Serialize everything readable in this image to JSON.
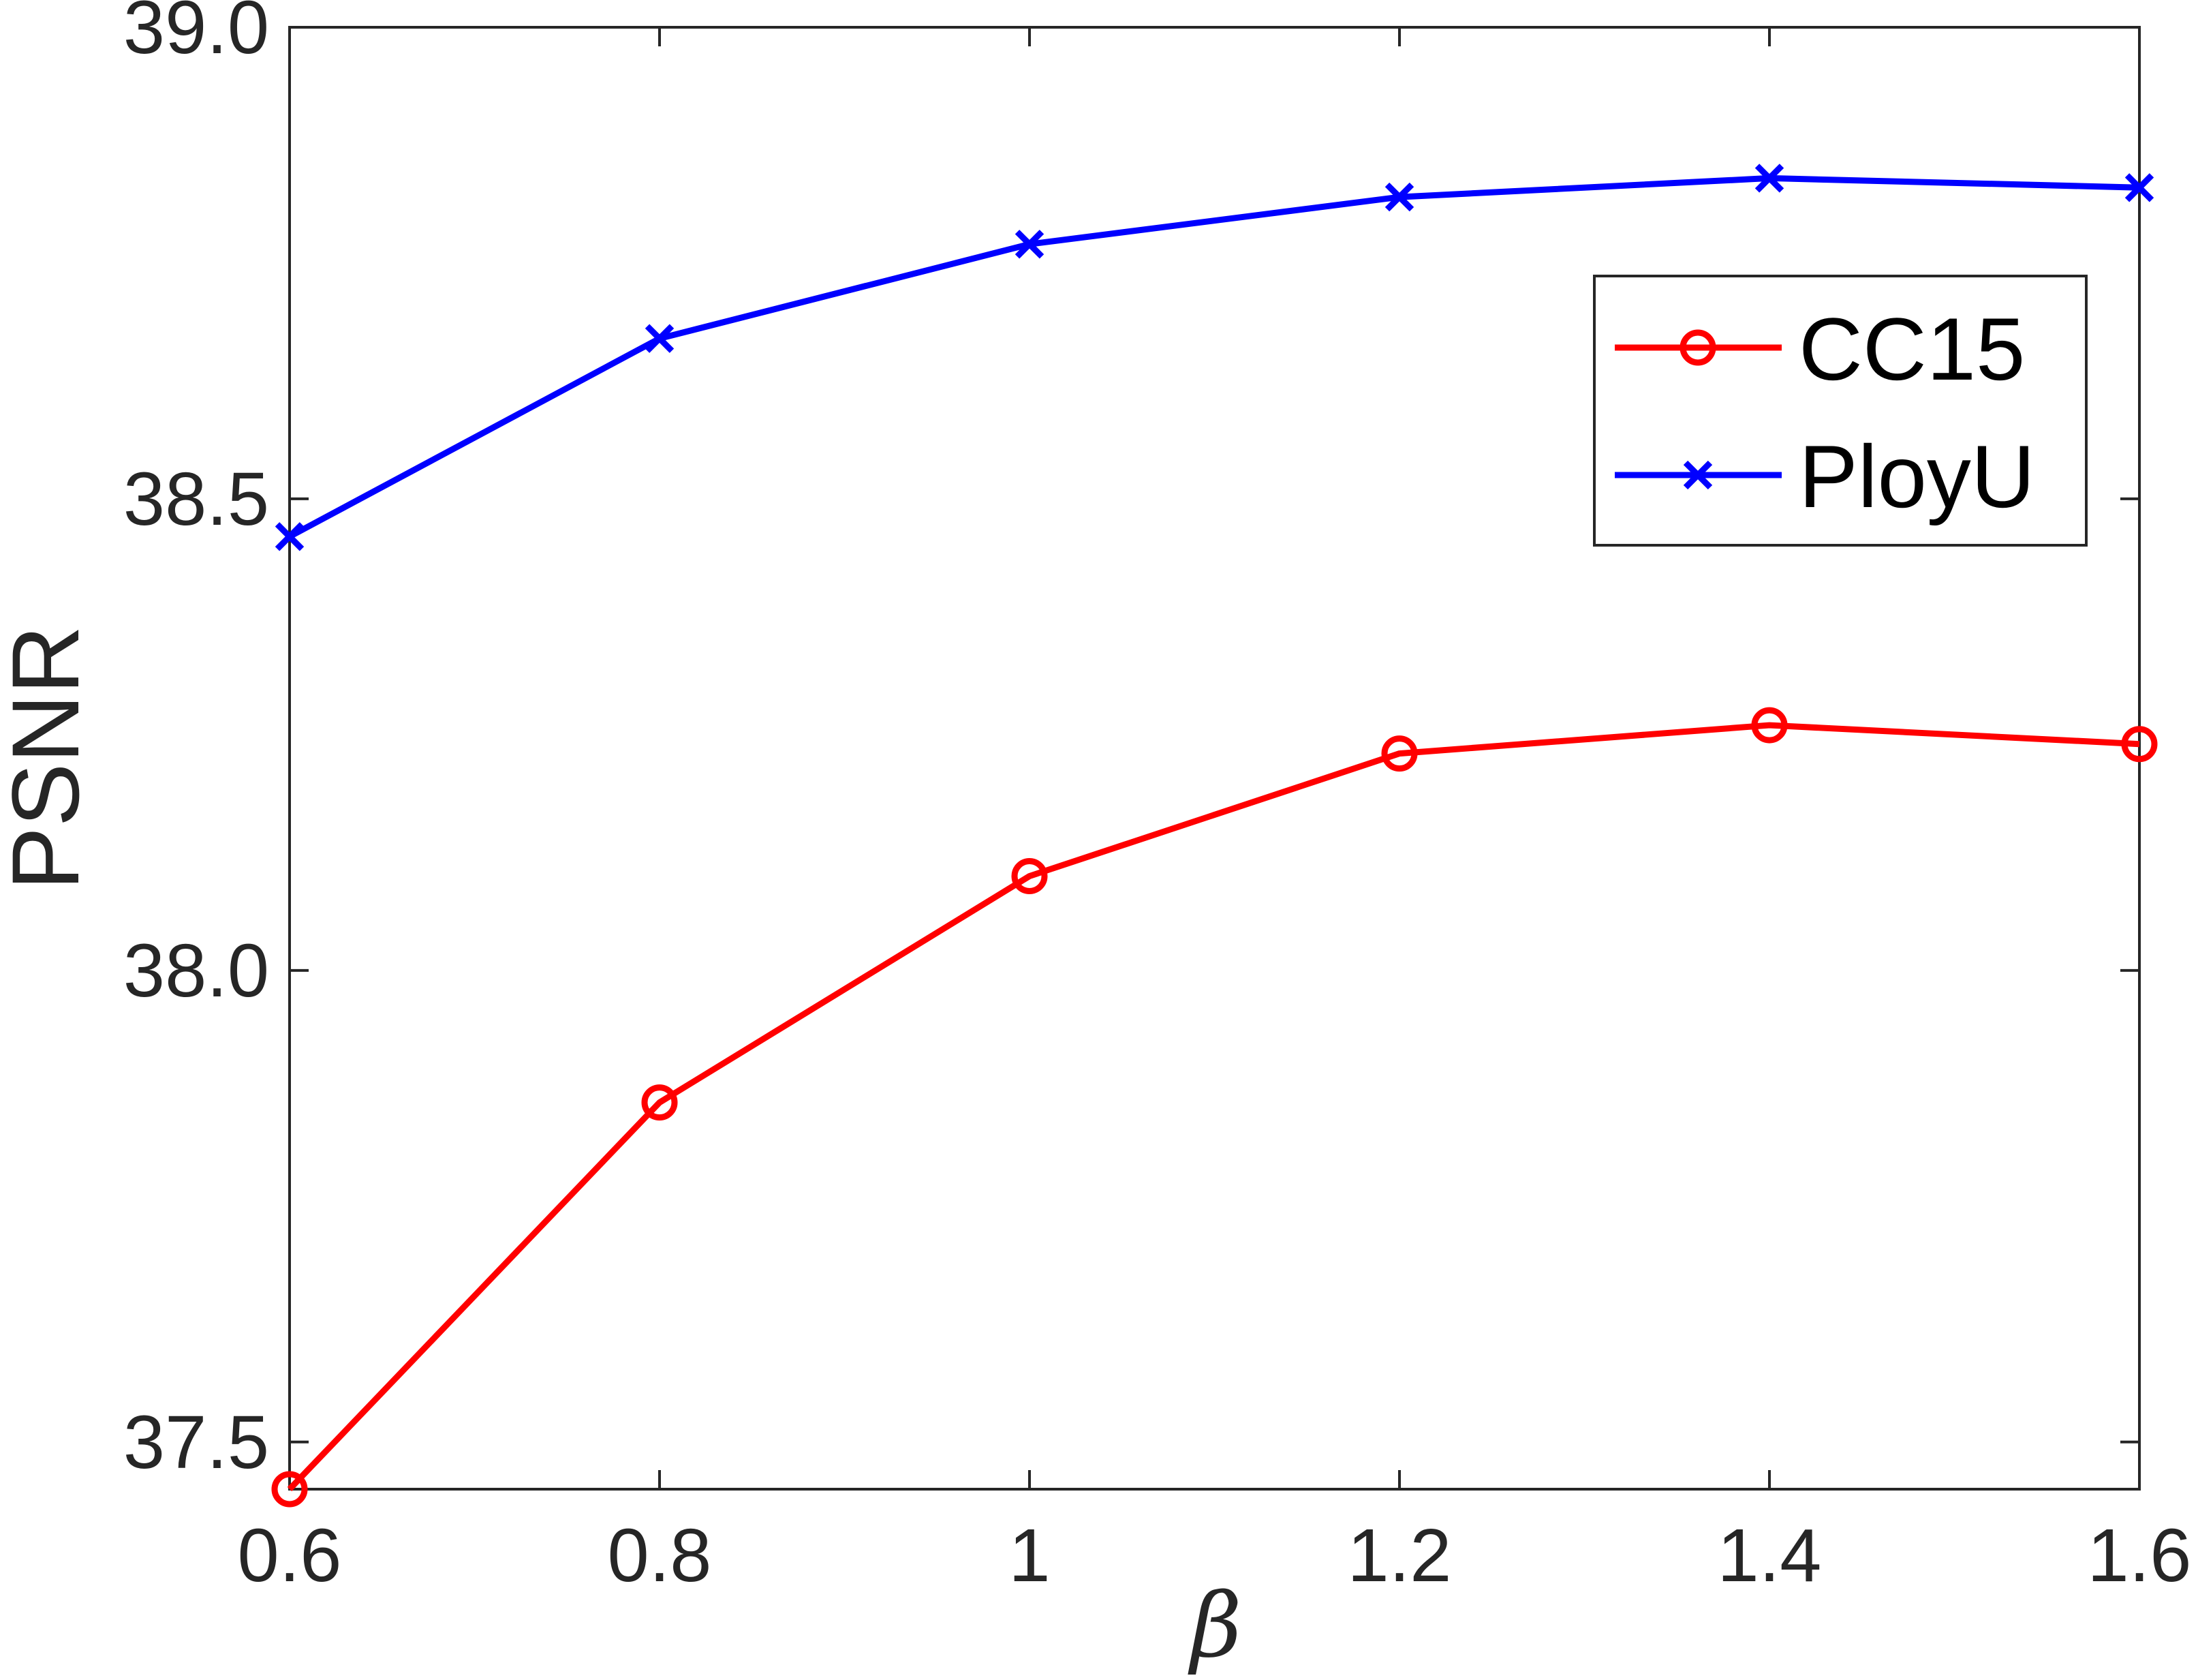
{
  "chart_data": {
    "type": "line",
    "x": [
      0.6,
      0.8,
      1.0,
      1.2,
      1.4,
      1.6
    ],
    "x_tick_labels": [
      "0.6",
      "0.8",
      "1",
      "1.2",
      "1.4",
      "1.6"
    ],
    "y_ticks": [
      37.5,
      38.0,
      38.5,
      39.0
    ],
    "y_tick_labels": [
      "37.5",
      "38.0",
      "38.5",
      "39.0"
    ],
    "xlabel": "β",
    "ylabel": "PSNR",
    "xlim": [
      0.6,
      1.6
    ],
    "ylim": [
      37.45,
      39.0
    ],
    "grid": false,
    "legend_position": "top-right",
    "series": [
      {
        "name": "CC15",
        "color": "#ff0000",
        "marker": "circle",
        "values": [
          37.45,
          37.86,
          38.1,
          38.23,
          38.26,
          38.24
        ]
      },
      {
        "name": "PloyU",
        "color": "#0000ff",
        "marker": "x",
        "values": [
          38.46,
          38.67,
          38.77,
          38.82,
          38.84,
          38.83
        ]
      }
    ]
  }
}
